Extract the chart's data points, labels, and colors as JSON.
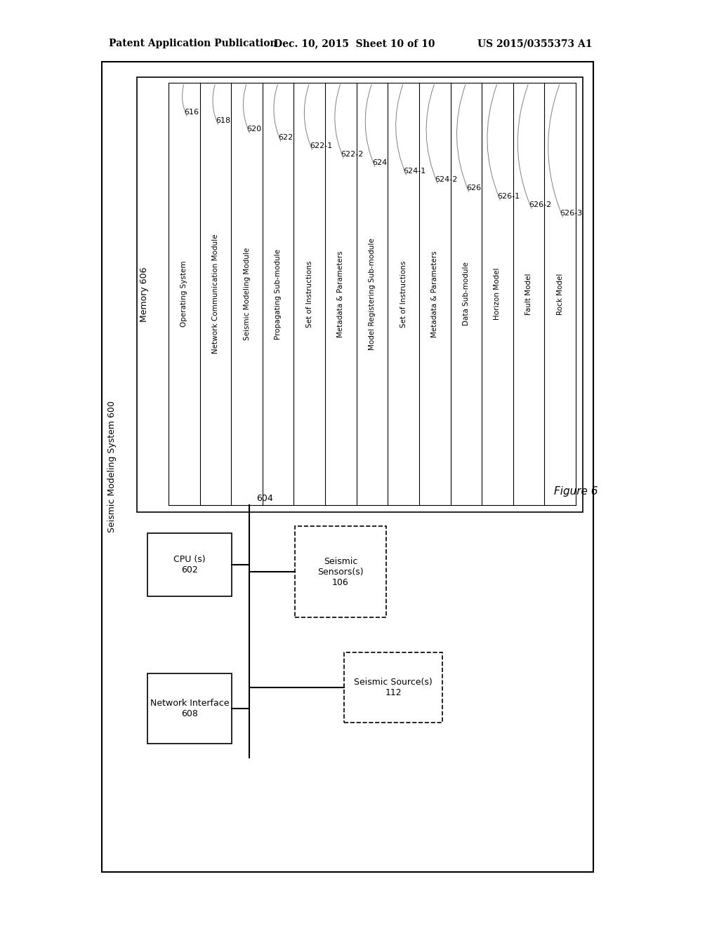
{
  "title_header": "Patent Application Publication",
  "title_date": "Dec. 10, 2015  Sheet 10 of 10",
  "title_patent": "US 2015/0355373 A1",
  "figure_label": "Figure 6",
  "bg_color": "#ffffff",
  "border_color": "#000000",
  "memory_label": "Memory 606",
  "system_label": "Seismic Modeling System 600",
  "columns": [
    {
      "label": "Operating System",
      "ref": "616"
    },
    {
      "label": "Network Communication Module",
      "ref": "618"
    },
    {
      "label": "Seismic Modeling Module",
      "ref": "620"
    },
    {
      "label": "Propagating Sub-module",
      "ref": "622"
    },
    {
      "label": "Set of Instructions",
      "ref": "622-1"
    },
    {
      "label": "Metadata & Parameters",
      "ref": "622-2"
    },
    {
      "label": "Model Registering Sub-module",
      "ref": "624"
    },
    {
      "label": "Set of Instructions",
      "ref": "624-1"
    },
    {
      "label": "Metadata & Parameters",
      "ref": "624-2"
    },
    {
      "label": "Data Sub-module",
      "ref": "626"
    },
    {
      "label": "Horizon Model",
      "ref": "626-1"
    },
    {
      "label": "Fault Model",
      "ref": "626-2"
    },
    {
      "label": "Rock Model",
      "ref": "626-3"
    }
  ],
  "cpu_label": "CPU (s)\n602",
  "cpu_ref": "602",
  "network_interface_label": "Network Interface\n608",
  "network_interface_ref": "608",
  "seismic_sensors_label": "Seismic\nSensors(s)\n106",
  "seismic_sensors_ref": "106",
  "seismic_source_label": "Seismic Source(s)\n112",
  "seismic_source_ref": "112",
  "bus_ref": "604"
}
